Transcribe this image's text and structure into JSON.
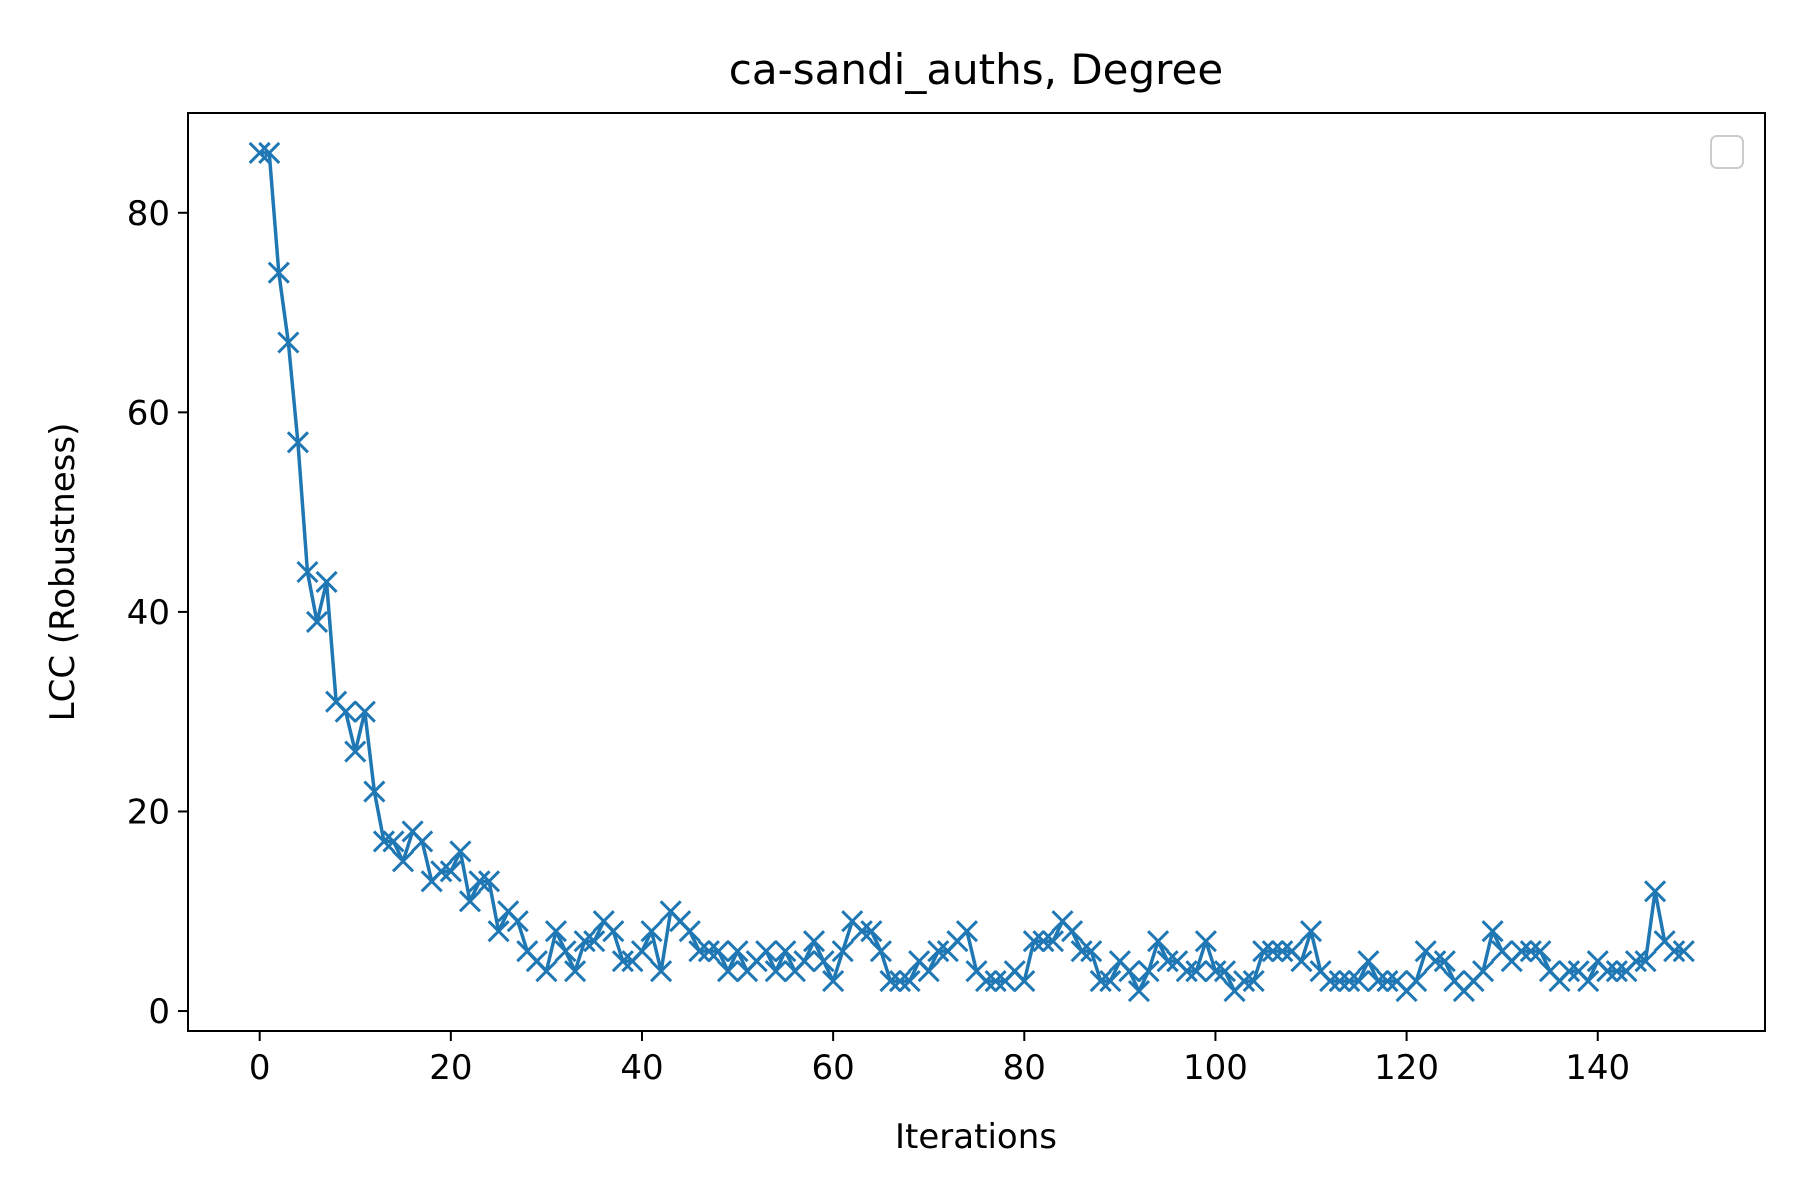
{
  "chart_data": {
    "type": "line",
    "title": "ca-sandi_auths, Degree",
    "xlabel": "Iterations",
    "ylabel": "LCC (Robustness)",
    "xlim": [
      -7.5,
      157.5
    ],
    "ylim": [
      -2,
      90
    ],
    "xticks": [
      0,
      20,
      40,
      60,
      80,
      100,
      120,
      140
    ],
    "yticks": [
      0,
      20,
      40,
      60,
      80
    ],
    "grid": false,
    "legend": "upper right (empty)",
    "marker": "x",
    "color": "#1f77b4",
    "series": [
      {
        "x": [
          0,
          1,
          2,
          3,
          4,
          5,
          6,
          7,
          8,
          9,
          10,
          11,
          12,
          13,
          14,
          15,
          16,
          17,
          18,
          19,
          20,
          21,
          22,
          23,
          24,
          25,
          26,
          27,
          28,
          29,
          30,
          31,
          32,
          33,
          34,
          35,
          36,
          37,
          38,
          39,
          40,
          41,
          42,
          43,
          44,
          45,
          46,
          47,
          48,
          49,
          50,
          51,
          52,
          53,
          54,
          55,
          56,
          57,
          58,
          59,
          60,
          61,
          62,
          63,
          64,
          65,
          66,
          67,
          68,
          69,
          70,
          71,
          72,
          73,
          74,
          75,
          76,
          77,
          78,
          79,
          80,
          81,
          82,
          83,
          84,
          85,
          86,
          87,
          88,
          89,
          90,
          91,
          92,
          93,
          94,
          95,
          96,
          97,
          98,
          99,
          100,
          101,
          102,
          103,
          104,
          105,
          106,
          107,
          108,
          109,
          110,
          111,
          112,
          113,
          114,
          115,
          116,
          117,
          118,
          119,
          120,
          121,
          122,
          123,
          124,
          125,
          126,
          127,
          128,
          129,
          130,
          131,
          132,
          133,
          134,
          135,
          136,
          137,
          138,
          139,
          140,
          141,
          142,
          143,
          144,
          145,
          146,
          147,
          148,
          149
        ],
        "y": [
          86,
          86,
          74,
          67,
          57,
          44,
          39,
          43,
          31,
          30,
          26,
          30,
          22,
          17,
          17,
          15,
          18,
          17,
          13,
          14,
          14,
          16,
          11,
          13,
          13,
          8,
          10,
          9,
          6,
          5,
          4,
          8,
          6,
          4,
          7,
          7,
          9,
          8,
          5,
          5,
          6,
          8,
          4,
          10,
          9,
          8,
          6,
          6,
          6,
          4,
          6,
          4,
          5,
          6,
          4,
          6,
          4,
          5,
          7,
          5,
          3,
          6,
          9,
          8,
          8,
          6,
          3,
          3,
          3,
          5,
          4,
          6,
          6,
          7,
          8,
          4,
          3,
          3,
          3,
          4,
          3,
          7,
          7,
          7,
          9,
          8,
          6,
          6,
          3,
          3,
          5,
          4,
          2,
          4,
          7,
          5,
          5,
          4,
          4,
          7,
          4,
          4,
          2,
          3,
          3,
          6,
          6,
          6,
          6,
          5,
          8,
          4,
          3,
          3,
          3,
          3,
          5,
          3,
          3,
          3,
          2,
          3,
          6,
          5,
          5,
          3,
          2,
          3,
          4,
          8,
          6,
          5,
          6,
          6,
          6,
          4,
          3,
          4,
          4,
          3,
          5,
          4,
          4,
          4,
          5,
          5,
          12,
          7,
          6,
          6
        ]
      }
    ]
  }
}
